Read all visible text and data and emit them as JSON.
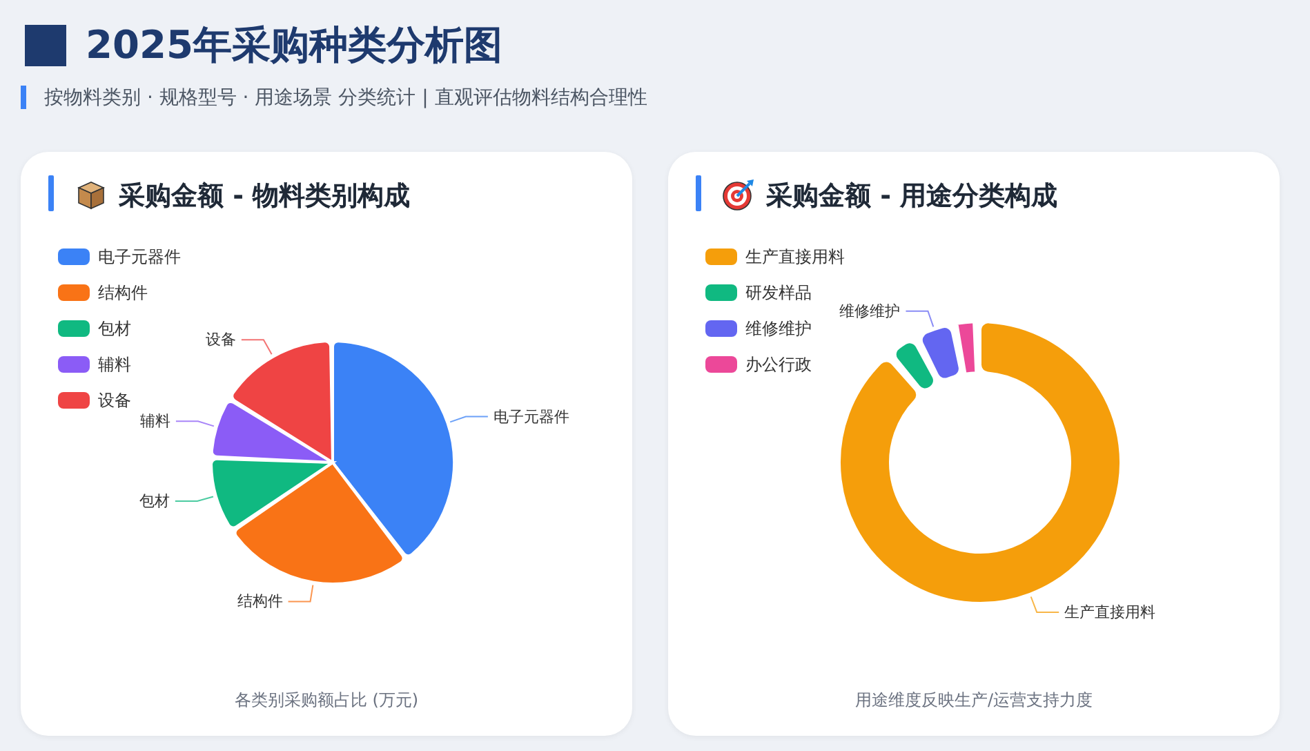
{
  "chart_data": [
    {
      "type": "other",
      "title": "2025年采购种类分析图",
      "subtitle": "按物料类别 · 规格型号 · 用途场景 分类统计 | 直观评估物料结构合理性"
    },
    {
      "type": "pie",
      "title": "采购金额 - 物料类别构成",
      "categories": [
        "电子元器件",
        "结构件",
        "包材",
        "辅料",
        "设备"
      ],
      "values": [
        40,
        26,
        10,
        8,
        16
      ],
      "colors": [
        "#3b82f6",
        "#f97316",
        "#10b981",
        "#8b5cf6",
        "#ef4444"
      ],
      "value_labels": [
        "电子元器件",
        "结构件",
        "包材",
        "辅料",
        "设备"
      ],
      "legend": "top left",
      "annotations": [
        "各类别采购额占比 (万元)"
      ]
    },
    {
      "type": "donut",
      "title": "采购金额 - 用途分类构成",
      "categories": [
        "生产直接用料",
        "研发样品",
        "维修维护",
        "办公行政"
      ],
      "values": [
        91,
        3,
        4,
        2
      ],
      "colors": [
        "#f59e0b",
        "#10b981",
        "#6366f1",
        "#ec4899"
      ],
      "value_labels": [
        "生产直接用料",
        null,
        "维修维护",
        null
      ],
      "legend": "top left",
      "annotations": [
        "用途维度反映生产/运营支持力度"
      ]
    }
  ]
}
